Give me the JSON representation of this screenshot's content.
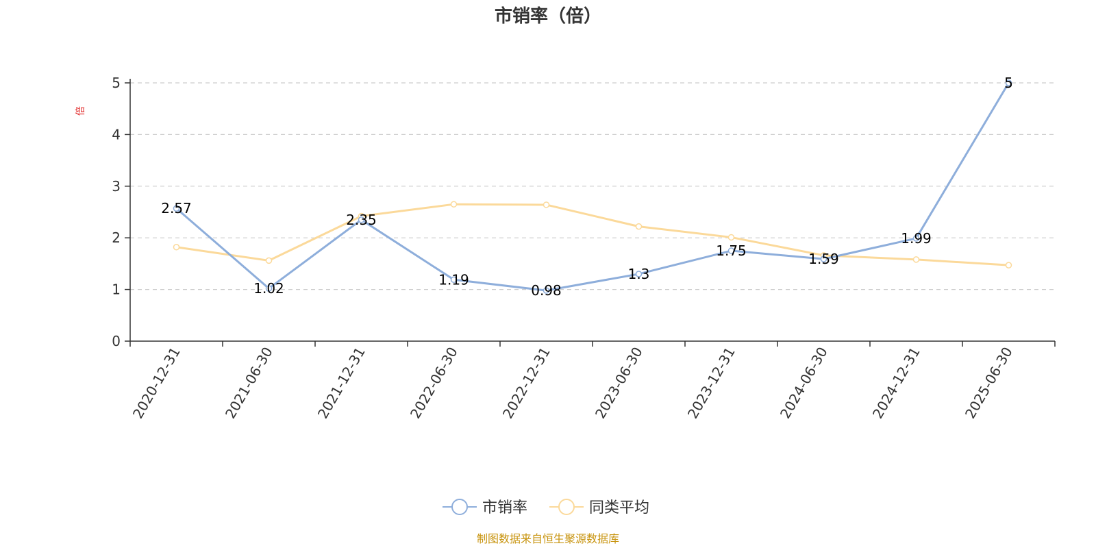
{
  "chart_data": {
    "type": "line",
    "title": "市销率（倍）",
    "ylabel": "倍",
    "xlabel": "",
    "x": [
      "2020-12-31",
      "2021-06-30",
      "2021-12-31",
      "2022-06-30",
      "2022-12-31",
      "2023-06-30",
      "2023-12-31",
      "2024-06-30",
      "2024-12-31",
      "2025-06-30"
    ],
    "ylim": [
      0,
      5
    ],
    "yticks": [
      0,
      1,
      2,
      3,
      4,
      5
    ],
    "grid": true,
    "legend_position": "bottom-center",
    "series": [
      {
        "name": "市销率",
        "color": "#8eaedb",
        "values": [
          2.57,
          1.02,
          2.35,
          1.19,
          0.98,
          1.3,
          1.75,
          1.59,
          1.99,
          5
        ],
        "labels": [
          "2.57",
          "1.02",
          "2.35",
          "1.19",
          "0.98",
          "1.3",
          "1.75",
          "1.59",
          "1.99",
          "5"
        ]
      },
      {
        "name": "同类平均",
        "color": "#fbd99a",
        "values": [
          1.82,
          1.56,
          2.42,
          2.65,
          2.64,
          2.22,
          2.01,
          1.66,
          1.58,
          1.47
        ]
      }
    ],
    "source": "制图数据来自恒生聚源数据库"
  }
}
